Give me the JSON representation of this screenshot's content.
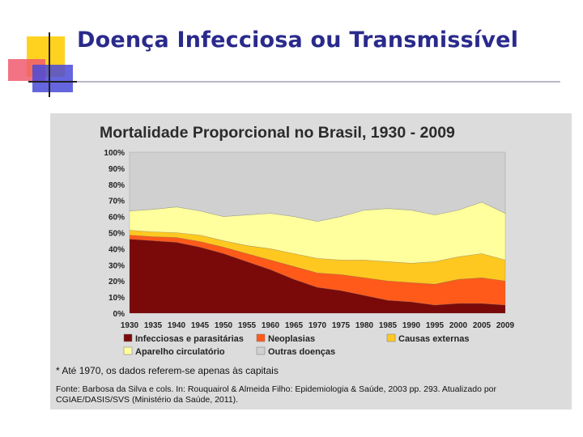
{
  "slide": {
    "title": "Doença Infecciosa ou Transmissível"
  },
  "chart_data": {
    "type": "area",
    "stacked": true,
    "title": "Mortalidade Proporcional no Brasil, 1930 - 2009",
    "categories": [
      "1930",
      "1935",
      "1940",
      "1945",
      "1950",
      "1955",
      "1960",
      "1965",
      "1970",
      "1975",
      "1980",
      "1985",
      "1990",
      "1995",
      "2000",
      "2005",
      "2009"
    ],
    "y_ticks": [
      "100%",
      "90%",
      "80%",
      "70%",
      "60%",
      "50%",
      "40%",
      "30%",
      "20%",
      "10%",
      "0%"
    ],
    "ylim": [
      0,
      100
    ],
    "series": [
      {
        "name": "Infecciosas e parasitárias",
        "color": "#7a0a0a",
        "values": [
          46,
          45,
          44,
          41,
          37,
          32,
          27,
          21,
          16,
          14,
          11,
          8,
          7,
          5,
          6,
          6,
          5
        ]
      },
      {
        "name": "Neoplasias",
        "color": "#ff5a1a",
        "values": [
          2.5,
          2.5,
          3,
          3.5,
          4,
          5,
          6,
          8,
          9,
          10,
          11,
          12,
          12,
          13,
          15,
          16,
          15
        ]
      },
      {
        "name": "Causas externas",
        "color": "#ffc820",
        "values": [
          3,
          3,
          3,
          4,
          4,
          5,
          7,
          8,
          9,
          9,
          11,
          12,
          12,
          14,
          14,
          15,
          13
        ]
      },
      {
        "name": "Aparelho circulatório",
        "color": "#ffff9e",
        "values": [
          12,
          14,
          16,
          15,
          15,
          19,
          22,
          23,
          23,
          27,
          31,
          33,
          33,
          29,
          29,
          32,
          29
        ]
      },
      {
        "name": "Outras doenças",
        "color": "#d0d0d0",
        "values": [
          36.5,
          35.5,
          34,
          36.5,
          40,
          39,
          38,
          40,
          43,
          40,
          36,
          35,
          36,
          39,
          36,
          31,
          38
        ]
      }
    ],
    "legend": [
      "Infecciosas e parasitárias",
      "Neoplasias",
      "Causas externas",
      "Aparelho circulatório",
      "Outras doenças"
    ],
    "legend_position": "bottom",
    "note": "* Até 1970, os dados referem-se apenas às capitais",
    "source_line1": "Fonte: Barbosa da Silva e cols. In: Rouquairol & Almeida Filho: Epidemiologia & Saúde, 2003 pp. 293.   Atualizado por",
    "source_line2a": "CGIAE/DASIS/SVS",
    "source_line2b": "(Ministério da Saúde, 2011)."
  }
}
